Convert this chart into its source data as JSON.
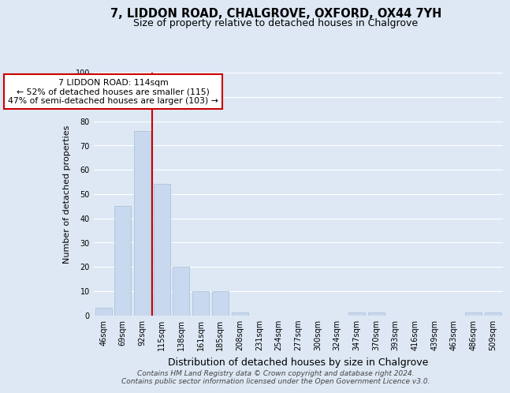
{
  "title": "7, LIDDON ROAD, CHALGROVE, OXFORD, OX44 7YH",
  "subtitle": "Size of property relative to detached houses in Chalgrove",
  "xlabel": "Distribution of detached houses by size in Chalgrove",
  "ylabel": "Number of detached properties",
  "bar_labels": [
    "46sqm",
    "69sqm",
    "92sqm",
    "115sqm",
    "138sqm",
    "161sqm",
    "185sqm",
    "208sqm",
    "231sqm",
    "254sqm",
    "277sqm",
    "300sqm",
    "324sqm",
    "347sqm",
    "370sqm",
    "393sqm",
    "416sqm",
    "439sqm",
    "463sqm",
    "486sqm",
    "509sqm"
  ],
  "bar_values": [
    3,
    45,
    76,
    54,
    20,
    10,
    10,
    1,
    0,
    0,
    0,
    0,
    0,
    1,
    1,
    0,
    0,
    0,
    0,
    1,
    1
  ],
  "bar_color": "#c8d8ee",
  "bar_edge_color": "#a8bcd8",
  "vline_color": "#cc0000",
  "ylim": [
    0,
    100
  ],
  "yticks": [
    0,
    10,
    20,
    30,
    40,
    50,
    60,
    70,
    80,
    90,
    100
  ],
  "annotation_line1": "7 LIDDON ROAD: 114sqm",
  "annotation_line2": "← 52% of detached houses are smaller (115)",
  "annotation_line3": "47% of semi-detached houses are larger (103) →",
  "annotation_box_color": "#ffffff",
  "annotation_box_edge": "#cc0000",
  "footer_text": "Contains HM Land Registry data © Crown copyright and database right 2024.\nContains public sector information licensed under the Open Government Licence v3.0.",
  "background_color": "#dde8f4",
  "plot_background_color": "#dde8f4",
  "grid_color": "#ffffff",
  "title_fontsize": 10.5,
  "subtitle_fontsize": 9,
  "xlabel_fontsize": 9,
  "ylabel_fontsize": 8,
  "tick_fontsize": 7,
  "footer_fontsize": 6.5
}
